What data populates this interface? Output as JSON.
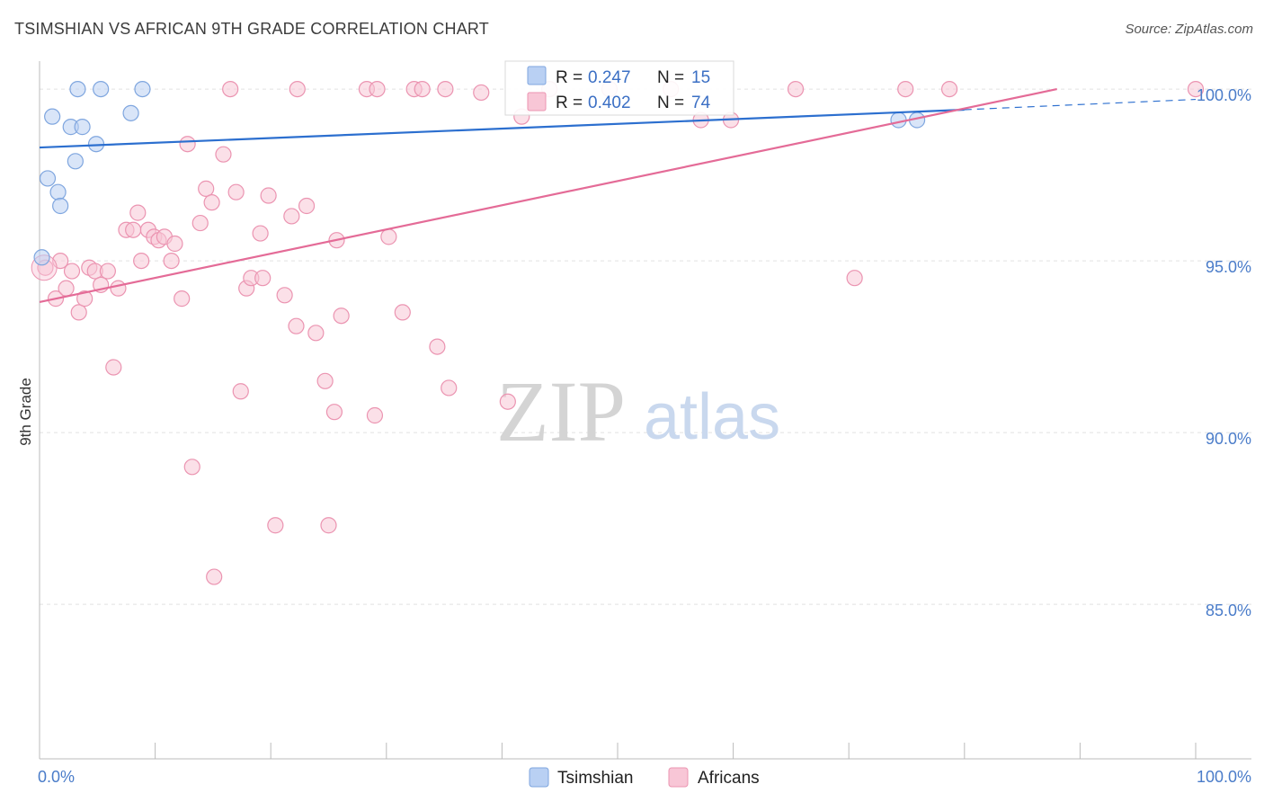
{
  "title": "TSIMSHIAN VS AFRICAN 9TH GRADE CORRELATION CHART",
  "source": "Source: ZipAtlas.com",
  "watermark": {
    "zip": "ZIP",
    "atlas": "atlas"
  },
  "colors": {
    "blue_fill": "#b9d0f3",
    "blue_stroke": "#7fa6df",
    "blue_line": "#2c6fcf",
    "pink_fill": "#f8c6d6",
    "pink_stroke": "#eb94b1",
    "pink_line": "#e46b97",
    "grid": "#e2e2e2",
    "tick_label": "#4a7cc9"
  },
  "legend_stats": [
    {
      "r_label": "R =",
      "r_value": "0.247",
      "n_label": "N =",
      "n_value": "15",
      "series": "Tsimshian"
    },
    {
      "r_label": "R =",
      "r_value": "0.402",
      "n_label": "N =",
      "n_value": "74",
      "series": "Africans"
    }
  ],
  "chart_data": {
    "type": "scatter",
    "title": "TSIMSHIAN VS AFRICAN 9TH GRADE CORRELATION CHART",
    "xlabel": "",
    "ylabel": "9th Grade",
    "xlim": [
      0,
      100
    ],
    "ylim": [
      80.5,
      100.5
    ],
    "x_tick_labels": [
      {
        "value": 0,
        "label": "0.0%"
      },
      {
        "value": 100,
        "label": "100.0%"
      }
    ],
    "y_ticks": [
      {
        "value": 100,
        "label": "100.0%"
      },
      {
        "value": 95,
        "label": "95.0%"
      },
      {
        "value": 90,
        "label": "90.0%"
      },
      {
        "value": 85,
        "label": "85.0%"
      }
    ],
    "grid": true,
    "legend": [
      "Tsimshian",
      "Africans"
    ],
    "series": [
      {
        "name": "Tsimshian",
        "color": "#b9d0f3",
        "trend": {
          "x0": 0,
          "y0": 98.3,
          "x1": 80,
          "y1": 99.4,
          "dashed_to_x": 100,
          "dashed_to_y": 99.7
        },
        "points": [
          {
            "x": 0.2,
            "y": 95.1
          },
          {
            "x": 0.7,
            "y": 97.4
          },
          {
            "x": 1.1,
            "y": 99.2
          },
          {
            "x": 1.6,
            "y": 97.0
          },
          {
            "x": 1.8,
            "y": 96.6
          },
          {
            "x": 2.7,
            "y": 98.9
          },
          {
            "x": 3.1,
            "y": 97.9
          },
          {
            "x": 3.3,
            "y": 100.0
          },
          {
            "x": 3.7,
            "y": 98.9
          },
          {
            "x": 4.9,
            "y": 98.4
          },
          {
            "x": 5.3,
            "y": 100.0
          },
          {
            "x": 7.9,
            "y": 99.3
          },
          {
            "x": 8.9,
            "y": 100.0
          },
          {
            "x": 74.3,
            "y": 99.1
          },
          {
            "x": 75.9,
            "y": 99.1
          }
        ]
      },
      {
        "name": "Africans",
        "color": "#f8c6d6",
        "trend": {
          "x0": 0,
          "y0": 93.8,
          "x1": 88,
          "y1": 100.0
        },
        "points": [
          {
            "x": 0.5,
            "y": 94.8
          },
          {
            "x": 1.4,
            "y": 93.9
          },
          {
            "x": 1.8,
            "y": 95.0
          },
          {
            "x": 2.3,
            "y": 94.2
          },
          {
            "x": 2.8,
            "y": 94.7
          },
          {
            "x": 3.4,
            "y": 93.5
          },
          {
            "x": 3.9,
            "y": 93.9
          },
          {
            "x": 4.3,
            "y": 94.8
          },
          {
            "x": 4.8,
            "y": 94.7
          },
          {
            "x": 5.3,
            "y": 94.3
          },
          {
            "x": 5.9,
            "y": 94.7
          },
          {
            "x": 6.4,
            "y": 91.9
          },
          {
            "x": 6.8,
            "y": 94.2
          },
          {
            "x": 7.5,
            "y": 95.9
          },
          {
            "x": 8.1,
            "y": 95.9
          },
          {
            "x": 8.5,
            "y": 96.4
          },
          {
            "x": 8.8,
            "y": 95.0
          },
          {
            "x": 9.4,
            "y": 95.9
          },
          {
            "x": 9.9,
            "y": 95.7
          },
          {
            "x": 10.3,
            "y": 95.6
          },
          {
            "x": 10.8,
            "y": 95.7
          },
          {
            "x": 11.4,
            "y": 95.0
          },
          {
            "x": 11.7,
            "y": 95.5
          },
          {
            "x": 12.3,
            "y": 93.9
          },
          {
            "x": 12.8,
            "y": 98.4
          },
          {
            "x": 13.2,
            "y": 89.0
          },
          {
            "x": 13.9,
            "y": 96.1
          },
          {
            "x": 14.4,
            "y": 97.1
          },
          {
            "x": 14.9,
            "y": 96.7
          },
          {
            "x": 15.1,
            "y": 85.8
          },
          {
            "x": 15.9,
            "y": 98.1
          },
          {
            "x": 16.5,
            "y": 100.0
          },
          {
            "x": 17.0,
            "y": 97.0
          },
          {
            "x": 17.4,
            "y": 91.2
          },
          {
            "x": 17.9,
            "y": 94.2
          },
          {
            "x": 18.3,
            "y": 94.5
          },
          {
            "x": 19.1,
            "y": 95.8
          },
          {
            "x": 19.3,
            "y": 94.5
          },
          {
            "x": 19.8,
            "y": 96.9
          },
          {
            "x": 20.4,
            "y": 87.3
          },
          {
            "x": 21.2,
            "y": 94.0
          },
          {
            "x": 21.8,
            "y": 96.3
          },
          {
            "x": 22.2,
            "y": 93.1
          },
          {
            "x": 22.3,
            "y": 100.0
          },
          {
            "x": 23.1,
            "y": 96.6
          },
          {
            "x": 23.9,
            "y": 92.9
          },
          {
            "x": 24.7,
            "y": 91.5
          },
          {
            "x": 25.0,
            "y": 87.3
          },
          {
            "x": 25.5,
            "y": 90.6
          },
          {
            "x": 25.7,
            "y": 95.6
          },
          {
            "x": 26.1,
            "y": 93.4
          },
          {
            "x": 28.3,
            "y": 100.0
          },
          {
            "x": 29.0,
            "y": 90.5
          },
          {
            "x": 29.2,
            "y": 100.0
          },
          {
            "x": 30.2,
            "y": 95.7
          },
          {
            "x": 31.4,
            "y": 93.5
          },
          {
            "x": 32.4,
            "y": 100.0
          },
          {
            "x": 33.1,
            "y": 100.0
          },
          {
            "x": 34.4,
            "y": 92.5
          },
          {
            "x": 35.1,
            "y": 100.0
          },
          {
            "x": 35.4,
            "y": 91.3
          },
          {
            "x": 38.2,
            "y": 99.9
          },
          {
            "x": 40.5,
            "y": 90.9
          },
          {
            "x": 41.7,
            "y": 99.2
          },
          {
            "x": 44.1,
            "y": 100.0
          },
          {
            "x": 49.3,
            "y": 100.0
          },
          {
            "x": 54.6,
            "y": 100.0
          },
          {
            "x": 57.2,
            "y": 99.1
          },
          {
            "x": 59.8,
            "y": 99.1
          },
          {
            "x": 65.4,
            "y": 100.0
          },
          {
            "x": 70.5,
            "y": 94.5
          },
          {
            "x": 74.9,
            "y": 100.0
          },
          {
            "x": 78.7,
            "y": 100.0
          },
          {
            "x": 100.0,
            "y": 100.0
          }
        ]
      }
    ]
  }
}
